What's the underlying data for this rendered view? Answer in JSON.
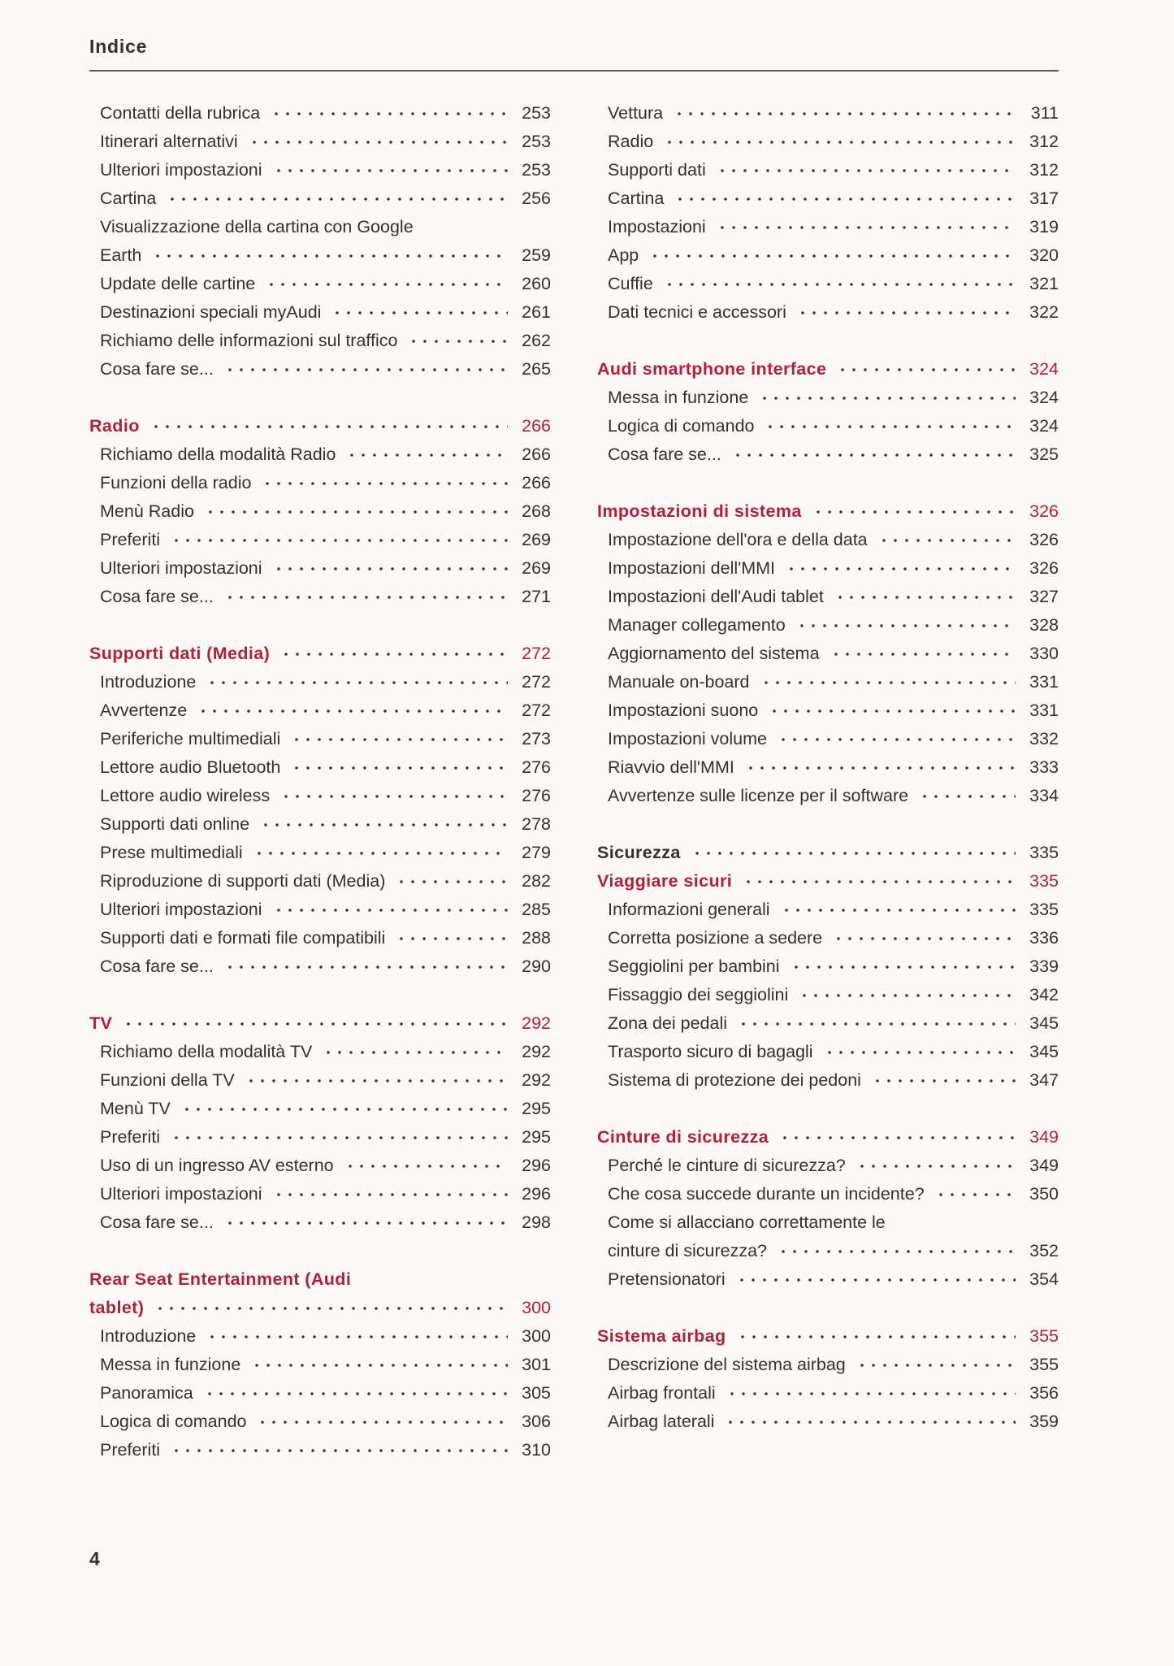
{
  "header": {
    "title": "Indice"
  },
  "footer": {
    "page_number": "4"
  },
  "colors": {
    "accent_red": "#b11f3a",
    "text": "#35302c",
    "rule": "#5a5550",
    "dot_leader": "#3a3530",
    "background": "#faf9f5"
  },
  "toc": {
    "columns": [
      {
        "sections": [
          {
            "rows": [
              {
                "text": "Contatti della rubrica",
                "page": "253",
                "style": "entry"
              },
              {
                "text": "Itinerari alternativi",
                "page": "253",
                "style": "entry"
              },
              {
                "text": "Ulteriori impostazioni",
                "page": "253",
                "style": "entry"
              },
              {
                "text": "Cartina",
                "page": "256",
                "style": "entry"
              },
              {
                "text": "Visualizzazione della cartina con Google",
                "page": "",
                "style": "entry"
              },
              {
                "text": "Earth",
                "page": "259",
                "style": "entry"
              },
              {
                "text": "Update delle cartine",
                "page": "260",
                "style": "entry"
              },
              {
                "text": "Destinazioni speciali myAudi",
                "page": "261",
                "style": "entry"
              },
              {
                "text": "Richiamo delle informazioni sul traffico",
                "page": "262",
                "style": "entry"
              },
              {
                "text": "Cosa fare se...",
                "page": "265",
                "style": "entry"
              }
            ]
          },
          {
            "rows": [
              {
                "text": "Radio",
                "page": "266",
                "style": "headr"
              },
              {
                "text": "Richiamo della modalità Radio",
                "page": "266",
                "style": "entry"
              },
              {
                "text": "Funzioni della radio",
                "page": "266",
                "style": "entry"
              },
              {
                "text": "Menù Radio",
                "page": "268",
                "style": "entry"
              },
              {
                "text": "Preferiti",
                "page": "269",
                "style": "entry"
              },
              {
                "text": "Ulteriori impostazioni",
                "page": "269",
                "style": "entry"
              },
              {
                "text": "Cosa fare se...",
                "page": "271",
                "style": "entry"
              }
            ]
          },
          {
            "rows": [
              {
                "text": "Supporti dati (Media)",
                "page": "272",
                "style": "headr"
              },
              {
                "text": "Introduzione",
                "page": "272",
                "style": "entry"
              },
              {
                "text": "Avvertenze",
                "page": "272",
                "style": "entry"
              },
              {
                "text": "Periferiche multimediali",
                "page": "273",
                "style": "entry"
              },
              {
                "text": "Lettore audio Bluetooth",
                "page": "276",
                "style": "entry"
              },
              {
                "text": "Lettore audio wireless",
                "page": "276",
                "style": "entry"
              },
              {
                "text": "Supporti dati online",
                "page": "278",
                "style": "entry"
              },
              {
                "text": "Prese multimediali",
                "page": "279",
                "style": "entry"
              },
              {
                "text": "Riproduzione di supporti dati (Media)",
                "page": "282",
                "style": "entry"
              },
              {
                "text": "Ulteriori impostazioni",
                "page": "285",
                "style": "entry"
              },
              {
                "text": "Supporti dati e formati file compatibili",
                "page": "288",
                "style": "entry"
              },
              {
                "text": "Cosa fare se...",
                "page": "290",
                "style": "entry"
              }
            ]
          },
          {
            "rows": [
              {
                "text": "TV",
                "page": "292",
                "style": "headr"
              },
              {
                "text": "Richiamo della modalità TV",
                "page": "292",
                "style": "entry"
              },
              {
                "text": "Funzioni della TV",
                "page": "292",
                "style": "entry"
              },
              {
                "text": "Menù TV",
                "page": "295",
                "style": "entry"
              },
              {
                "text": "Preferiti",
                "page": "295",
                "style": "entry"
              },
              {
                "text": "Uso di un ingresso AV esterno",
                "page": "296",
                "style": "entry"
              },
              {
                "text": "Ulteriori impostazioni",
                "page": "296",
                "style": "entry"
              },
              {
                "text": "Cosa fare se...",
                "page": "298",
                "style": "entry"
              }
            ]
          },
          {
            "rows": [
              {
                "text": "Rear Seat Entertainment (Audi",
                "page": "",
                "style": "headr"
              },
              {
                "text": "tablet)",
                "page": "300",
                "style": "headr"
              },
              {
                "text": "Introduzione",
                "page": "300",
                "style": "entry"
              },
              {
                "text": "Messa in funzione",
                "page": "301",
                "style": "entry"
              },
              {
                "text": "Panoramica",
                "page": "305",
                "style": "entry"
              },
              {
                "text": "Logica di comando",
                "page": "306",
                "style": "entry"
              },
              {
                "text": "Preferiti",
                "page": "310",
                "style": "entry"
              }
            ]
          }
        ]
      },
      {
        "sections": [
          {
            "rows": [
              {
                "text": "Vettura",
                "page": "311",
                "style": "entry"
              },
              {
                "text": "Radio",
                "page": "312",
                "style": "entry"
              },
              {
                "text": "Supporti dati",
                "page": "312",
                "style": "entry"
              },
              {
                "text": "Cartina",
                "page": "317",
                "style": "entry"
              },
              {
                "text": "Impostazioni",
                "page": "319",
                "style": "entry"
              },
              {
                "text": "App",
                "page": "320",
                "style": "entry"
              },
              {
                "text": "Cuffie",
                "page": "321",
                "style": "entry"
              },
              {
                "text": "Dati tecnici e accessori",
                "page": "322",
                "style": "entry"
              }
            ]
          },
          {
            "rows": [
              {
                "text": "Audi smartphone interface",
                "page": "324",
                "style": "headr"
              },
              {
                "text": "Messa in funzione",
                "page": "324",
                "style": "entry"
              },
              {
                "text": "Logica di comando",
                "page": "324",
                "style": "entry"
              },
              {
                "text": "Cosa fare se...",
                "page": "325",
                "style": "entry"
              }
            ]
          },
          {
            "rows": [
              {
                "text": "Impostazioni di sistema",
                "page": "326",
                "style": "headr"
              },
              {
                "text": "Impostazione dell'ora e della data",
                "page": "326",
                "style": "entry"
              },
              {
                "text": "Impostazioni dell'MMI",
                "page": "326",
                "style": "entry"
              },
              {
                "text": "Impostazioni dell'Audi tablet",
                "page": "327",
                "style": "entry"
              },
              {
                "text": "Manager collegamento",
                "page": "328",
                "style": "entry"
              },
              {
                "text": "Aggiornamento del sistema",
                "page": "330",
                "style": "entry"
              },
              {
                "text": "Manuale on-board",
                "page": "331",
                "style": "entry"
              },
              {
                "text": "Impostazioni suono",
                "page": "331",
                "style": "entry"
              },
              {
                "text": "Impostazioni volume",
                "page": "332",
                "style": "entry"
              },
              {
                "text": "Riavvio dell'MMI",
                "page": "333",
                "style": "entry"
              },
              {
                "text": "Avvertenze sulle licenze per il software",
                "page": "334",
                "style": "entry"
              }
            ]
          },
          {
            "rows": [
              {
                "text": "Sicurezza",
                "page": "335",
                "style": "headb"
              },
              {
                "text": "Viaggiare sicuri",
                "page": "335",
                "style": "headr"
              },
              {
                "text": "Informazioni generali",
                "page": "335",
                "style": "entry"
              },
              {
                "text": "Corretta posizione a sedere",
                "page": "336",
                "style": "entry"
              },
              {
                "text": "Seggiolini per bambini",
                "page": "339",
                "style": "entry"
              },
              {
                "text": "Fissaggio dei seggiolini",
                "page": "342",
                "style": "entry"
              },
              {
                "text": "Zona dei pedali",
                "page": "345",
                "style": "entry"
              },
              {
                "text": "Trasporto sicuro di bagagli",
                "page": "345",
                "style": "entry"
              },
              {
                "text": "Sistema di protezione dei pedoni",
                "page": "347",
                "style": "entry"
              }
            ]
          },
          {
            "rows": [
              {
                "text": "Cinture di sicurezza",
                "page": "349",
                "style": "headr"
              },
              {
                "text": "Perché le cinture di sicurezza?",
                "page": "349",
                "style": "entry"
              },
              {
                "text": "Che cosa succede durante un incidente?",
                "page": "350",
                "style": "entry"
              },
              {
                "text": "Come si allacciano correttamente le",
                "page": "",
                "style": "entry"
              },
              {
                "text": "cinture di sicurezza?",
                "page": "352",
                "style": "entry"
              },
              {
                "text": "Pretensionatori",
                "page": "354",
                "style": "entry"
              }
            ]
          },
          {
            "rows": [
              {
                "text": "Sistema airbag",
                "page": "355",
                "style": "headr"
              },
              {
                "text": "Descrizione del sistema airbag",
                "page": "355",
                "style": "entry"
              },
              {
                "text": "Airbag frontali",
                "page": "356",
                "style": "entry"
              },
              {
                "text": "Airbag laterali",
                "page": "359",
                "style": "entry"
              }
            ]
          }
        ]
      }
    ]
  }
}
